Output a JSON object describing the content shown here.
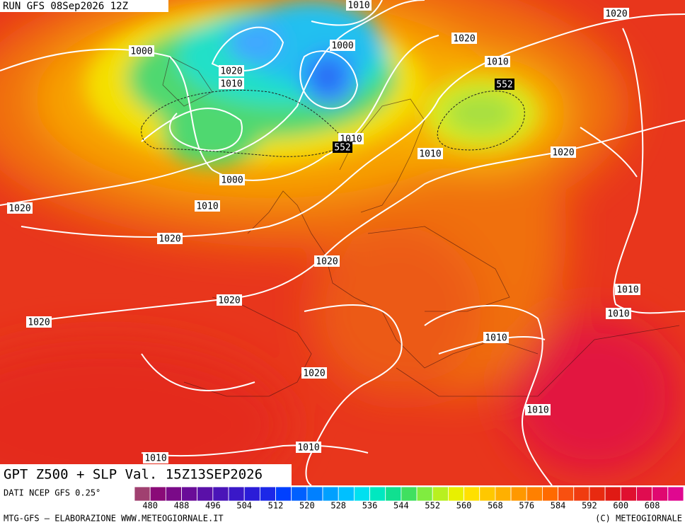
{
  "header": {
    "run": "RUN GFS 08Sep2026 12Z"
  },
  "map": {
    "title": "GPT Z500 + SLP Val. 15Z13SEP2026",
    "slp_labels": [
      1010,
      1020,
      1020,
      1000,
      1000,
      1020,
      1010,
      1010,
      1010,
      1010,
      1020,
      1000,
      1010,
      1020,
      1020,
      1020,
      1010,
      1020,
      1010,
      1020,
      1010,
      1020,
      1010,
      1010,
      1010
    ],
    "z500_labels": [
      552,
      552
    ]
  },
  "footer": {
    "source": "DATI NCEP GFS 0.25°",
    "credit": "MTG-GFS — ELABORAZIONE WWW.METEOGIORNALE.IT",
    "copyright": "(C) METEOGIORNALE",
    "legend": {
      "ticks": [
        480,
        488,
        496,
        504,
        512,
        520,
        528,
        536,
        544,
        552,
        560,
        568,
        576,
        584,
        592,
        600,
        608
      ]
    }
  }
}
